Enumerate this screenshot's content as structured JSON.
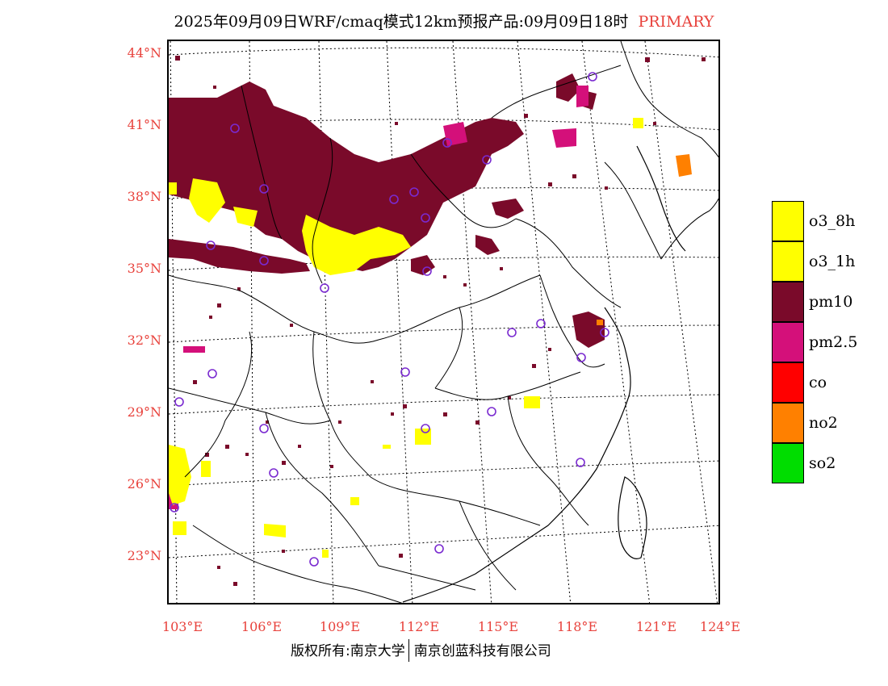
{
  "title": {
    "text": "2025年09月09日WRF/cmaq模式12km预报产品:09月09日18时",
    "primary": "PRIMARY"
  },
  "latitudes": [
    "44°N",
    "41°N",
    "38°N",
    "35°N",
    "32°N",
    "29°N",
    "26°N",
    "23°N"
  ],
  "longitudes": [
    "103°E",
    "106°E",
    "109°E",
    "112°E",
    "115°E",
    "118°E",
    "121°E",
    "124°E"
  ],
  "legend": [
    {
      "label": "o3_8h",
      "color": "#ffff00"
    },
    {
      "label": "o3_1h",
      "color": "#ffff00"
    },
    {
      "label": "pm10",
      "color": "#7a0a2a"
    },
    {
      "label": "pm2.5",
      "color": "#d4107a"
    },
    {
      "label": "co",
      "color": "#ff0000"
    },
    {
      "label": "no2",
      "color": "#ff8000"
    },
    {
      "label": "so2",
      "color": "#00dd00"
    }
  ],
  "copyright": {
    "left": "版权所有:南京大学",
    "right": "南京创蓝科技有限公司"
  },
  "colors": {
    "axis_label": "#e8423c",
    "station_circle": "#7a2ad0"
  }
}
